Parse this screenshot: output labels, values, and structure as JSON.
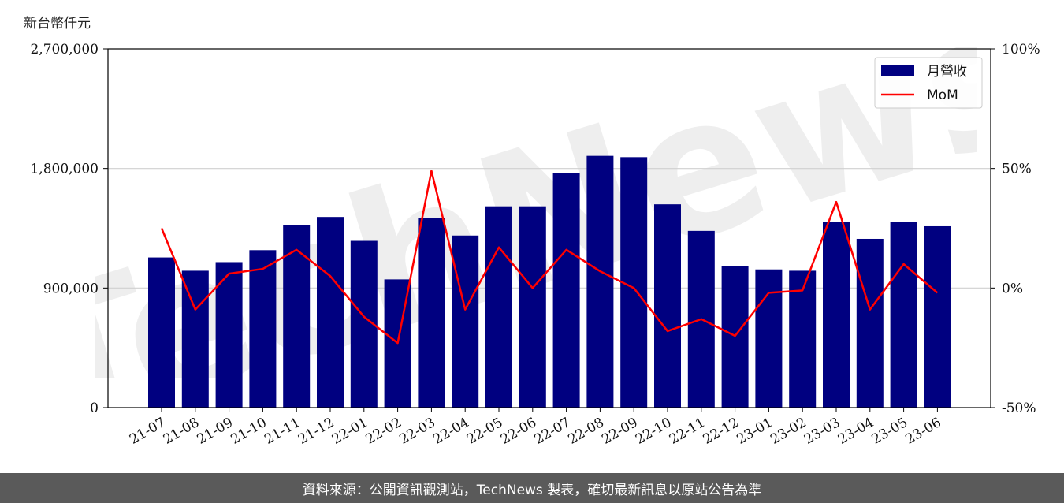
{
  "chart_data": {
    "type": "bar",
    "unit_label": "新台幣仟元",
    "categories": [
      "21-07",
      "21-08",
      "21-09",
      "21-10",
      "21-11",
      "21-12",
      "22-01",
      "22-02",
      "22-03",
      "22-04",
      "22-05",
      "22-06",
      "22-07",
      "22-08",
      "22-09",
      "22-10",
      "22-11",
      "22-12",
      "23-01",
      "23-02",
      "23-03",
      "23-04",
      "23-05",
      "23-06"
    ],
    "series": [
      {
        "name": "月營收",
        "type": "bar",
        "axis": "left",
        "color": "#000080",
        "values": [
          1130000,
          1030000,
          1095000,
          1185000,
          1375000,
          1435000,
          1255000,
          965000,
          1425000,
          1295000,
          1515000,
          1515000,
          1765000,
          1895000,
          1885000,
          1530000,
          1330000,
          1065000,
          1040000,
          1030000,
          1395000,
          1270000,
          1395000,
          1365000
        ]
      },
      {
        "name": "MoM",
        "type": "line",
        "axis": "right",
        "color": "#ff0000",
        "values": [
          25,
          -9,
          6,
          8,
          16,
          5,
          -12,
          -23,
          49,
          -9,
          17,
          0,
          16,
          7,
          0,
          -18,
          -13,
          -20,
          -2,
          -1,
          36,
          -9,
          10,
          -2
        ]
      }
    ],
    "left_axis": {
      "ylim": [
        0,
        2700000
      ],
      "ticks": [
        "0",
        "900,000",
        "1,800,000",
        "2,700,000"
      ],
      "tick_values": [
        0,
        900000,
        1800000,
        2700000
      ]
    },
    "right_axis": {
      "ylim": [
        -50,
        100
      ],
      "ticks": [
        "-50%",
        "0%",
        "50%",
        "100%"
      ],
      "tick_values": [
        -50,
        0,
        50,
        100
      ]
    },
    "grid": "horizontal",
    "legend_position": "top-right"
  },
  "watermark_text": "TechNews",
  "footer_text": "資料來源：公開資訊觀測站，TechNews 製表，確切最新訊息以原站公告為準"
}
